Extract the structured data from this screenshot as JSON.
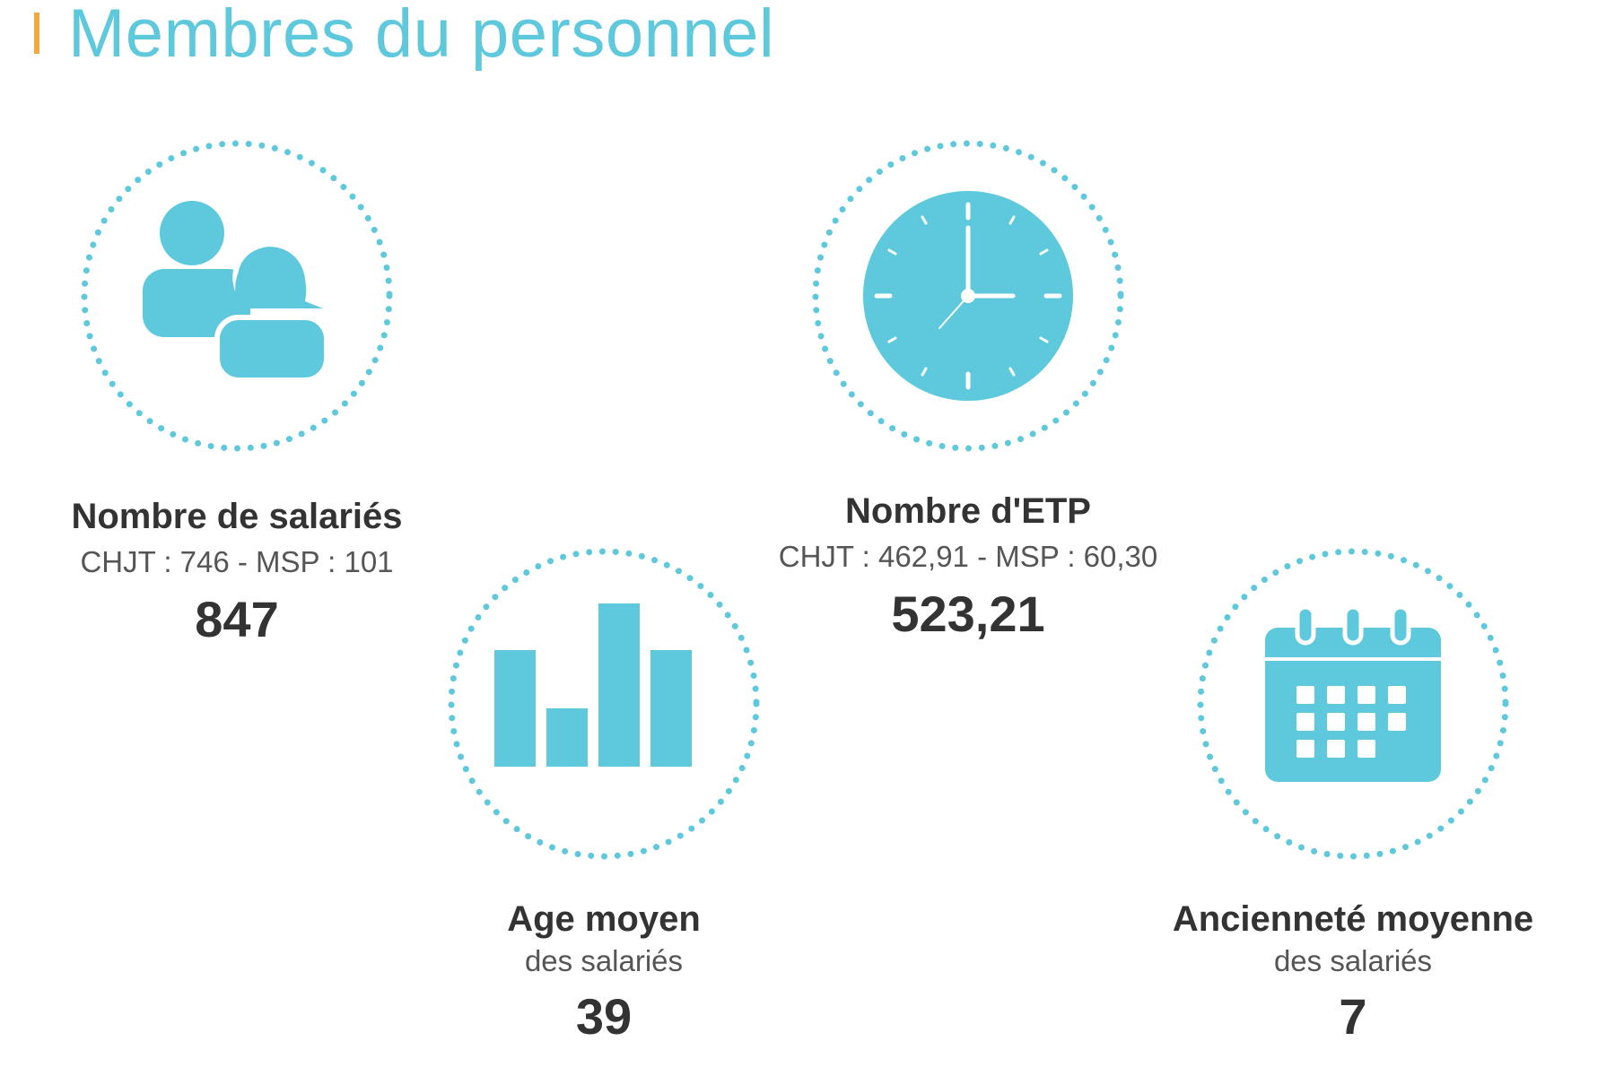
{
  "page": {
    "title": "Membres du personnel"
  },
  "colors": {
    "accent": "#5ec8dc",
    "title_bar": "#f2a93b",
    "text": "#333333",
    "subtext": "#555555"
  },
  "stats": [
    {
      "icon": "people-icon",
      "label": "Nombre de salariés",
      "sub": "CHJT : 746 - MSP : 101",
      "value": "847"
    },
    {
      "icon": "clock-icon",
      "label": "Nombre d'ETP",
      "sub": "CHJT : 462,91 - MSP : 60,30",
      "value": "523,21"
    },
    {
      "icon": "bar-chart-icon",
      "label": "Age moyen",
      "sub": "des salariés",
      "value": "39"
    },
    {
      "icon": "calendar-icon",
      "label": "Ancienneté moyenne",
      "sub": "des salariés",
      "value": "7"
    }
  ]
}
